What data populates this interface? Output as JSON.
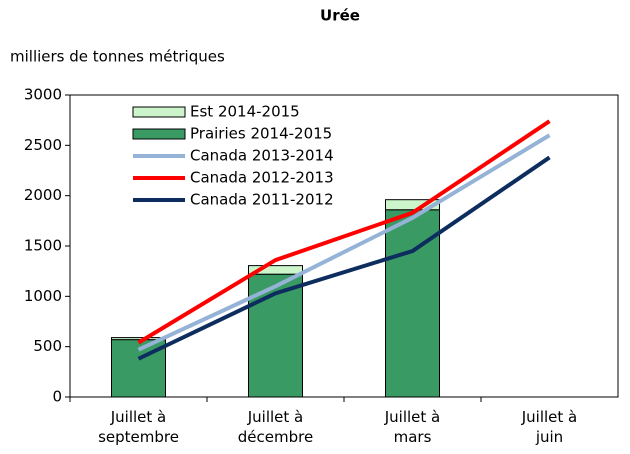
{
  "chart_data": {
    "type": "bar",
    "title": "Urée",
    "ylabel": "milliers de tonnes métriques",
    "categories": [
      "Juillet à\nseptembre",
      "Juillet à\ndécembre",
      "Juillet à\nmars",
      "Juillet à\njuin"
    ],
    "ylim": [
      0,
      3000
    ],
    "yticks": [
      0,
      500,
      1000,
      1500,
      2000,
      2500,
      3000
    ],
    "grid": false,
    "legend": "upper left",
    "series": [
      {
        "name": "Est 2014-2015",
        "type": "bar",
        "color": "#ccf5cc",
        "values": [
          20,
          85,
          100,
          null
        ]
      },
      {
        "name": "Prairies 2014-2015",
        "type": "bar",
        "color": "#3a9a64",
        "values": [
          570,
          1220,
          1860,
          null
        ]
      },
      {
        "name": "Canada 2013-2014",
        "type": "line",
        "color": "#95b3d7",
        "values": [
          470,
          1100,
          1780,
          2600
        ]
      },
      {
        "name": "Canada 2012-2013",
        "type": "line",
        "color": "#ff0000",
        "values": [
          540,
          1360,
          1830,
          2740
        ]
      },
      {
        "name": "Canada 2011-2012",
        "type": "line",
        "color": "#0d2d5e",
        "values": [
          380,
          1030,
          1450,
          2380
        ]
      }
    ]
  }
}
